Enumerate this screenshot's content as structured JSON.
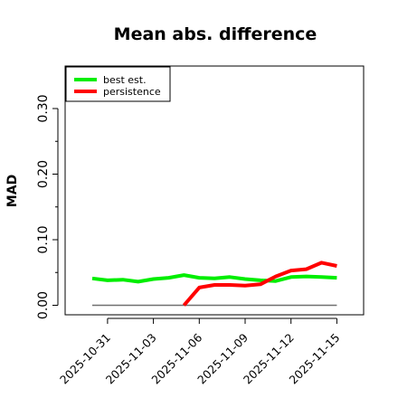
{
  "chart_data": {
    "type": "line",
    "title": "Mean abs. difference",
    "xlabel": "",
    "ylabel": "MAD",
    "x_dates": [
      "2025-10-30",
      "2025-10-31",
      "2025-11-01",
      "2025-11-02",
      "2025-11-03",
      "2025-11-04",
      "2025-11-05",
      "2025-11-06",
      "2025-11-07",
      "2025-11-08",
      "2025-11-09",
      "2025-11-10",
      "2025-11-11",
      "2025-11-12",
      "2025-11-13",
      "2025-11-14",
      "2025-11-15"
    ],
    "xticks": [
      "2025-10-31",
      "2025-11-03",
      "2025-11-06",
      "2025-11-09",
      "2025-11-12",
      "2025-11-15"
    ],
    "yticks": [
      "0.00",
      "0.10",
      "0.20",
      "0.30"
    ],
    "ylim": [
      -0.01,
      0.36
    ],
    "grid": false,
    "legend_position": "top-left",
    "series": [
      {
        "name": "best est.",
        "color": "#00ee00",
        "values": [
          0.041,
          0.038,
          0.039,
          0.036,
          0.04,
          0.042,
          0.046,
          0.042,
          0.041,
          0.043,
          0.04,
          0.038,
          0.037,
          0.043,
          0.044,
          0.043,
          0.042
        ]
      },
      {
        "name": "persistence",
        "color": "#ff0000",
        "values": [
          null,
          null,
          null,
          null,
          null,
          null,
          0.0,
          0.027,
          0.031,
          0.031,
          0.03,
          0.032,
          0.044,
          0.053,
          0.055,
          0.065,
          0.06
        ]
      }
    ],
    "reference_line": {
      "value": 0.0,
      "color": "#707070"
    }
  }
}
